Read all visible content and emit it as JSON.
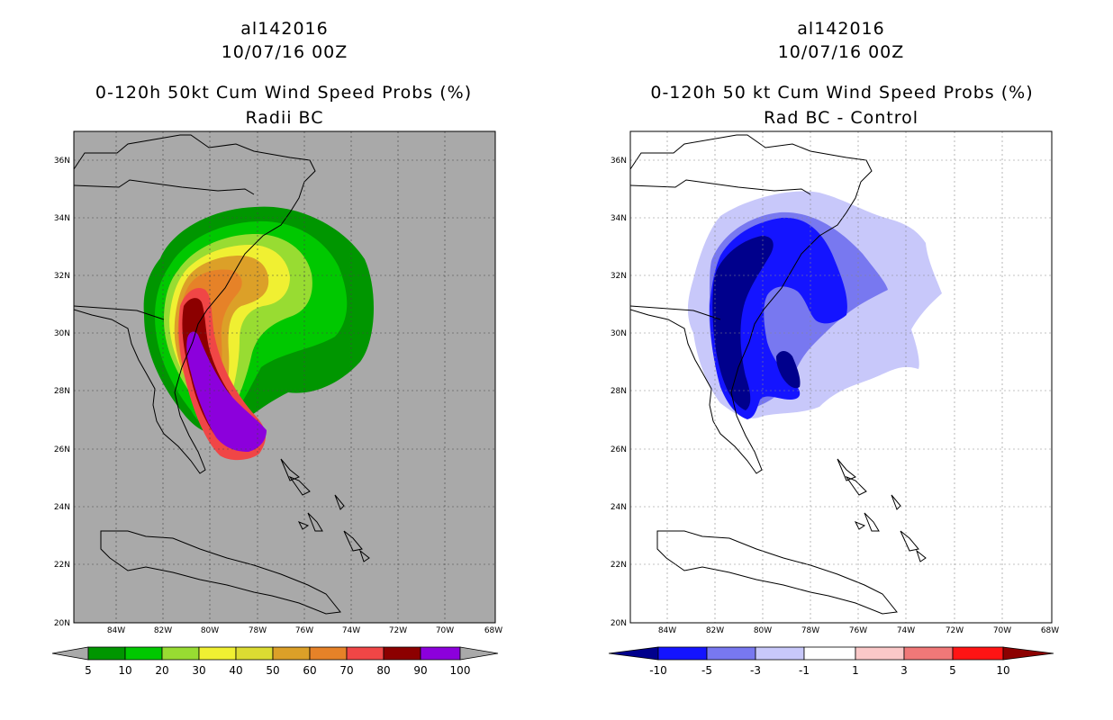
{
  "panels": [
    {
      "storm_id": "al142016",
      "datetime": "10/07/16 00Z",
      "title": "0-120h 50kt Cum Wind Speed Probs (%)",
      "subtitle": "Radii BC",
      "lat_labels": [
        "36N",
        "34N",
        "32N",
        "30N",
        "28N",
        "26N",
        "24N",
        "22N",
        "20N"
      ],
      "lon_labels": [
        "84W",
        "82W",
        "80W",
        "78W",
        "76W",
        "74W",
        "72W",
        "70W",
        "68W"
      ],
      "colorbar": {
        "labels": [
          "5",
          "10",
          "20",
          "30",
          "40",
          "50",
          "60",
          "70",
          "80",
          "90",
          "100"
        ],
        "colors": [
          "#009600",
          "#00c800",
          "#98dc32",
          "#f0f032",
          "#dcdc32",
          "#dca028",
          "#e68228",
          "#f04646",
          "#8c0000",
          "#8c00dc"
        ]
      }
    },
    {
      "storm_id": "al142016",
      "datetime": "10/07/16 00Z",
      "title": "0-120h 50 kt Cum Wind Speed Probs (%)",
      "subtitle": "Rad BC - Control",
      "lat_labels": [
        "36N",
        "34N",
        "32N",
        "30N",
        "28N",
        "26N",
        "24N",
        "22N",
        "20N"
      ],
      "lon_labels": [
        "84W",
        "82W",
        "80W",
        "78W",
        "76W",
        "74W",
        "72W",
        "70W",
        "68W"
      ],
      "colorbar": {
        "labels": [
          "-10",
          "-5",
          "-3",
          "-1",
          "1",
          "3",
          "5",
          "10"
        ],
        "colors": [
          "#00008c",
          "#1414ff",
          "#7878f0",
          "#c8c8fa",
          "#ffffff",
          "#fac8c8",
          "#f07878",
          "#ff1414",
          "#8c0000"
        ]
      }
    }
  ]
}
